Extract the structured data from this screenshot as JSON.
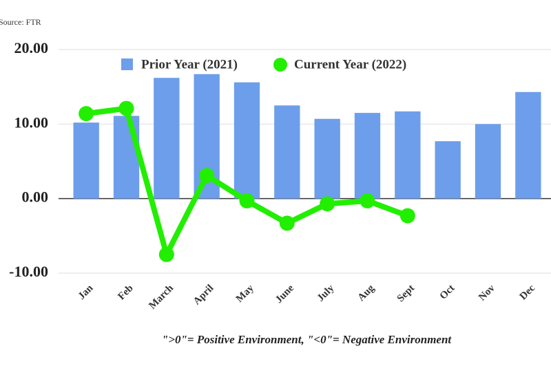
{
  "chart_data": {
    "type": "bar_line",
    "source": "Source: FTR",
    "footnote": "\">0\"= Positive Environment, \"<0\"= Negative Environment",
    "categories": [
      "Jan",
      "Feb",
      "March",
      "April",
      "May",
      "June",
      "July",
      "Aug",
      "Sept",
      "Oct",
      "Nov",
      "Dec"
    ],
    "series": [
      {
        "name": "Prior Year (2021)",
        "color": "#6d9eeb",
        "kind": "bar",
        "values": [
          10.2,
          11.1,
          16.2,
          16.7,
          15.6,
          12.5,
          10.7,
          11.5,
          11.7,
          7.7,
          10.0,
          14.3
        ]
      },
      {
        "name": "Current Year (2022)",
        "color": "#22ee00",
        "kind": "line",
        "values": [
          11.4,
          12.1,
          -7.5,
          3.1,
          -0.3,
          -3.3,
          -0.7,
          -0.3,
          -2.3,
          null,
          null,
          null
        ]
      }
    ],
    "ylim": [
      -10,
      20
    ],
    "yticks": [
      {
        "value": -10,
        "label": "-10.00"
      },
      {
        "value": 0,
        "label": "0.00"
      },
      {
        "value": 10,
        "label": "10.00"
      },
      {
        "value": 20,
        "label": "20.00"
      }
    ],
    "grid": true
  }
}
